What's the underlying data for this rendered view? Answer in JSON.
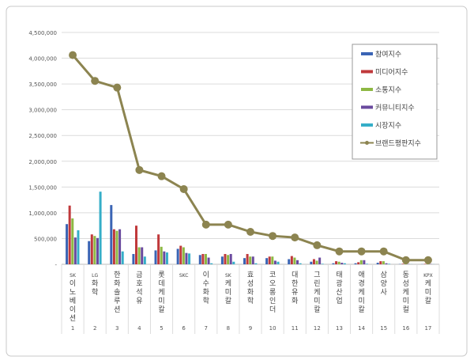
{
  "chart_data": {
    "type": "bar",
    "categories": [
      "SK이노베이션",
      "LG화학",
      "한화솔루션",
      "금호석유",
      "롯데케미칼",
      "SKC",
      "이수화학",
      "SK케미칼",
      "효성화학",
      "코오롱인더",
      "대한유화",
      "그린케미칼",
      "태광산업",
      "애경케미칼",
      "삼양사",
      "동성케미컬",
      "KPX케미칼"
    ],
    "ranks": [
      "1",
      "2",
      "3",
      "4",
      "5",
      "6",
      "7",
      "8",
      "9",
      "10",
      "11",
      "12",
      "13",
      "14",
      "15",
      "16",
      "17"
    ],
    "yticks": [
      "-",
      "500,000",
      "1,000,000",
      "1,500,000",
      "2,000,000",
      "2,500,000",
      "3,000,000",
      "3,500,000",
      "4,000,000",
      "4,500,000"
    ],
    "ylim": [
      0,
      4500000
    ],
    "grid": true,
    "legend_position": "top-right",
    "series": [
      {
        "name": "참여지수",
        "type": "bar",
        "color": "#3a64b4",
        "values": [
          780000,
          450000,
          1150000,
          200000,
          270000,
          300000,
          180000,
          150000,
          120000,
          120000,
          100000,
          50000,
          20000,
          20000,
          30000,
          5000,
          3000
        ]
      },
      {
        "name": "미디어지수",
        "type": "bar",
        "color": "#c0393b",
        "values": [
          1140000,
          580000,
          680000,
          750000,
          580000,
          360000,
          200000,
          200000,
          200000,
          150000,
          160000,
          100000,
          60000,
          40000,
          60000,
          10000,
          8000
        ]
      },
      {
        "name": "소통지수",
        "type": "bar",
        "color": "#8db843",
        "values": [
          890000,
          550000,
          650000,
          330000,
          340000,
          330000,
          200000,
          180000,
          150000,
          150000,
          130000,
          70000,
          50000,
          80000,
          60000,
          10000,
          8000
        ]
      },
      {
        "name": "커뮤니티지수",
        "type": "bar",
        "color": "#6a4a9e",
        "values": [
          520000,
          510000,
          680000,
          330000,
          250000,
          220000,
          130000,
          200000,
          150000,
          70000,
          80000,
          130000,
          30000,
          80000,
          20000,
          5000,
          5000
        ]
      },
      {
        "name": "시장지수",
        "type": "bar",
        "color": "#35aec8",
        "values": [
          660000,
          1410000,
          250000,
          150000,
          230000,
          210000,
          20000,
          50000,
          20000,
          50000,
          20000,
          10000,
          20000,
          10000,
          10000,
          2000,
          2000
        ]
      },
      {
        "name": "브랜드평판지수",
        "type": "line",
        "color": "#8c8450",
        "values": [
          4060000,
          3560000,
          3430000,
          1830000,
          1710000,
          1460000,
          770000,
          770000,
          630000,
          550000,
          520000,
          370000,
          250000,
          250000,
          250000,
          80000,
          80000
        ]
      }
    ]
  }
}
